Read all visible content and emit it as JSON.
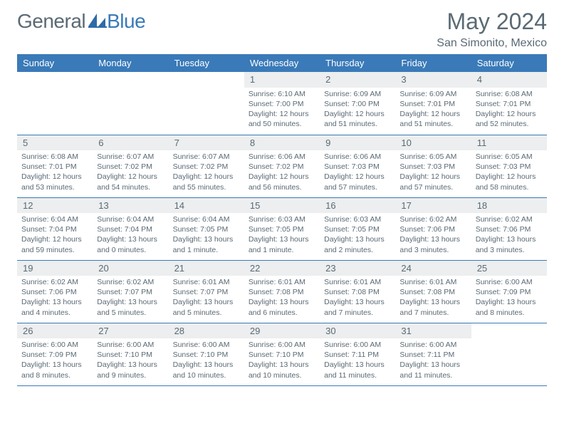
{
  "brand": {
    "part1": "General",
    "part2": "Blue"
  },
  "title": "May 2024",
  "location": "San Simonito, Mexico",
  "colors": {
    "header_bg": "#3a7ab8",
    "header_text": "#ffffff",
    "daybar_bg": "#eceeef",
    "text": "#5a6a74",
    "rule": "#3a7ab8",
    "page_bg": "#ffffff"
  },
  "day_headers": [
    "Sunday",
    "Monday",
    "Tuesday",
    "Wednesday",
    "Thursday",
    "Friday",
    "Saturday"
  ],
  "weeks": [
    [
      {
        "n": "",
        "sr": "",
        "ss": "",
        "dl": ""
      },
      {
        "n": "",
        "sr": "",
        "ss": "",
        "dl": ""
      },
      {
        "n": "",
        "sr": "",
        "ss": "",
        "dl": ""
      },
      {
        "n": "1",
        "sr": "Sunrise: 6:10 AM",
        "ss": "Sunset: 7:00 PM",
        "dl": "Daylight: 12 hours and 50 minutes."
      },
      {
        "n": "2",
        "sr": "Sunrise: 6:09 AM",
        "ss": "Sunset: 7:00 PM",
        "dl": "Daylight: 12 hours and 51 minutes."
      },
      {
        "n": "3",
        "sr": "Sunrise: 6:09 AM",
        "ss": "Sunset: 7:01 PM",
        "dl": "Daylight: 12 hours and 51 minutes."
      },
      {
        "n": "4",
        "sr": "Sunrise: 6:08 AM",
        "ss": "Sunset: 7:01 PM",
        "dl": "Daylight: 12 hours and 52 minutes."
      }
    ],
    [
      {
        "n": "5",
        "sr": "Sunrise: 6:08 AM",
        "ss": "Sunset: 7:01 PM",
        "dl": "Daylight: 12 hours and 53 minutes."
      },
      {
        "n": "6",
        "sr": "Sunrise: 6:07 AM",
        "ss": "Sunset: 7:02 PM",
        "dl": "Daylight: 12 hours and 54 minutes."
      },
      {
        "n": "7",
        "sr": "Sunrise: 6:07 AM",
        "ss": "Sunset: 7:02 PM",
        "dl": "Daylight: 12 hours and 55 minutes."
      },
      {
        "n": "8",
        "sr": "Sunrise: 6:06 AM",
        "ss": "Sunset: 7:02 PM",
        "dl": "Daylight: 12 hours and 56 minutes."
      },
      {
        "n": "9",
        "sr": "Sunrise: 6:06 AM",
        "ss": "Sunset: 7:03 PM",
        "dl": "Daylight: 12 hours and 57 minutes."
      },
      {
        "n": "10",
        "sr": "Sunrise: 6:05 AM",
        "ss": "Sunset: 7:03 PM",
        "dl": "Daylight: 12 hours and 57 minutes."
      },
      {
        "n": "11",
        "sr": "Sunrise: 6:05 AM",
        "ss": "Sunset: 7:03 PM",
        "dl": "Daylight: 12 hours and 58 minutes."
      }
    ],
    [
      {
        "n": "12",
        "sr": "Sunrise: 6:04 AM",
        "ss": "Sunset: 7:04 PM",
        "dl": "Daylight: 12 hours and 59 minutes."
      },
      {
        "n": "13",
        "sr": "Sunrise: 6:04 AM",
        "ss": "Sunset: 7:04 PM",
        "dl": "Daylight: 13 hours and 0 minutes."
      },
      {
        "n": "14",
        "sr": "Sunrise: 6:04 AM",
        "ss": "Sunset: 7:05 PM",
        "dl": "Daylight: 13 hours and 1 minute."
      },
      {
        "n": "15",
        "sr": "Sunrise: 6:03 AM",
        "ss": "Sunset: 7:05 PM",
        "dl": "Daylight: 13 hours and 1 minute."
      },
      {
        "n": "16",
        "sr": "Sunrise: 6:03 AM",
        "ss": "Sunset: 7:05 PM",
        "dl": "Daylight: 13 hours and 2 minutes."
      },
      {
        "n": "17",
        "sr": "Sunrise: 6:02 AM",
        "ss": "Sunset: 7:06 PM",
        "dl": "Daylight: 13 hours and 3 minutes."
      },
      {
        "n": "18",
        "sr": "Sunrise: 6:02 AM",
        "ss": "Sunset: 7:06 PM",
        "dl": "Daylight: 13 hours and 3 minutes."
      }
    ],
    [
      {
        "n": "19",
        "sr": "Sunrise: 6:02 AM",
        "ss": "Sunset: 7:06 PM",
        "dl": "Daylight: 13 hours and 4 minutes."
      },
      {
        "n": "20",
        "sr": "Sunrise: 6:02 AM",
        "ss": "Sunset: 7:07 PM",
        "dl": "Daylight: 13 hours and 5 minutes."
      },
      {
        "n": "21",
        "sr": "Sunrise: 6:01 AM",
        "ss": "Sunset: 7:07 PM",
        "dl": "Daylight: 13 hours and 5 minutes."
      },
      {
        "n": "22",
        "sr": "Sunrise: 6:01 AM",
        "ss": "Sunset: 7:08 PM",
        "dl": "Daylight: 13 hours and 6 minutes."
      },
      {
        "n": "23",
        "sr": "Sunrise: 6:01 AM",
        "ss": "Sunset: 7:08 PM",
        "dl": "Daylight: 13 hours and 7 minutes."
      },
      {
        "n": "24",
        "sr": "Sunrise: 6:01 AM",
        "ss": "Sunset: 7:08 PM",
        "dl": "Daylight: 13 hours and 7 minutes."
      },
      {
        "n": "25",
        "sr": "Sunrise: 6:00 AM",
        "ss": "Sunset: 7:09 PM",
        "dl": "Daylight: 13 hours and 8 minutes."
      }
    ],
    [
      {
        "n": "26",
        "sr": "Sunrise: 6:00 AM",
        "ss": "Sunset: 7:09 PM",
        "dl": "Daylight: 13 hours and 8 minutes."
      },
      {
        "n": "27",
        "sr": "Sunrise: 6:00 AM",
        "ss": "Sunset: 7:10 PM",
        "dl": "Daylight: 13 hours and 9 minutes."
      },
      {
        "n": "28",
        "sr": "Sunrise: 6:00 AM",
        "ss": "Sunset: 7:10 PM",
        "dl": "Daylight: 13 hours and 10 minutes."
      },
      {
        "n": "29",
        "sr": "Sunrise: 6:00 AM",
        "ss": "Sunset: 7:10 PM",
        "dl": "Daylight: 13 hours and 10 minutes."
      },
      {
        "n": "30",
        "sr": "Sunrise: 6:00 AM",
        "ss": "Sunset: 7:11 PM",
        "dl": "Daylight: 13 hours and 11 minutes."
      },
      {
        "n": "31",
        "sr": "Sunrise: 6:00 AM",
        "ss": "Sunset: 7:11 PM",
        "dl": "Daylight: 13 hours and 11 minutes."
      },
      {
        "n": "",
        "sr": "",
        "ss": "",
        "dl": ""
      }
    ]
  ]
}
